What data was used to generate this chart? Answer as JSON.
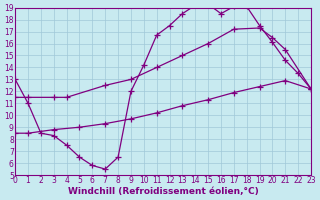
{
  "xlabel": "Windchill (Refroidissement éolien,°C)",
  "bg_color": "#c8eaf0",
  "line_color": "#800080",
  "grid_color": "#a0c8d8",
  "xlim": [
    0,
    23
  ],
  "ylim": [
    5,
    19
  ],
  "xticks": [
    0,
    1,
    2,
    3,
    4,
    5,
    6,
    7,
    8,
    9,
    10,
    11,
    12,
    13,
    14,
    15,
    16,
    17,
    18,
    19,
    20,
    21,
    22,
    23
  ],
  "yticks": [
    5,
    6,
    7,
    8,
    9,
    10,
    11,
    12,
    13,
    14,
    15,
    16,
    17,
    18,
    19
  ],
  "line1_x": [
    0,
    1,
    2,
    3,
    4,
    5,
    6,
    7,
    8,
    9,
    10,
    11,
    12,
    13,
    14,
    15,
    16,
    17,
    18,
    19,
    20,
    21,
    22,
    23
  ],
  "line1_y": [
    13,
    11,
    8.5,
    8.3,
    7.5,
    6.5,
    5.8,
    5.5,
    6.5,
    12.0,
    14.2,
    16.7,
    17.5,
    18.5,
    19.2,
    19.3,
    18.5,
    19.1,
    19.1,
    17.5,
    16.1,
    14.6,
    13.5,
    12.2
  ],
  "line2_x": [
    0,
    1,
    3,
    4,
    7,
    9,
    11,
    13,
    15,
    17,
    19,
    20,
    21,
    23
  ],
  "line2_y": [
    11.5,
    11.5,
    11.5,
    11.5,
    12.5,
    13.0,
    14.0,
    15.0,
    16.0,
    17.2,
    17.3,
    16.5,
    15.5,
    12.2
  ],
  "line3_x": [
    0,
    1,
    3,
    5,
    7,
    9,
    11,
    13,
    15,
    17,
    19,
    21,
    23
  ],
  "line3_y": [
    8.5,
    8.5,
    8.8,
    9.0,
    9.3,
    9.7,
    10.2,
    10.8,
    11.3,
    11.9,
    12.4,
    12.9,
    12.2
  ],
  "marker": "+",
  "markersize": 4,
  "linewidth": 0.9,
  "tick_fontsize": 5.5,
  "label_fontsize": 6.5
}
